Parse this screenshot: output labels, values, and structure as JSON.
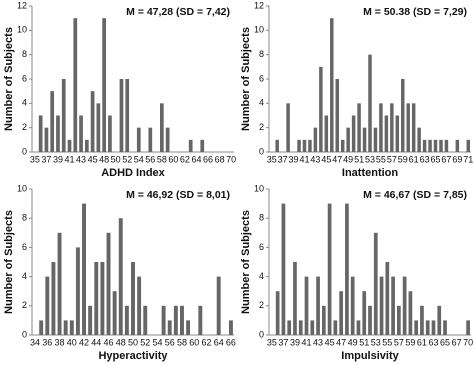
{
  "chart_data": [
    {
      "type": "bar",
      "annotation": "M = 47,28 (SD = 7,42)",
      "xlabel": "ADHD Index",
      "ylabel": "Number of Subjects",
      "color": "#666666",
      "grid": false,
      "categories": [
        "35",
        null,
        "37",
        null,
        "39",
        null,
        "41",
        null,
        "43",
        null,
        "45",
        null,
        "48",
        null,
        "50",
        null,
        "52",
        null,
        "54",
        null,
        "56",
        null,
        "58",
        null,
        "60",
        null,
        "62",
        null,
        "64",
        null,
        "66",
        null,
        "68",
        null,
        "70"
      ],
      "values": [
        0,
        3,
        2,
        5,
        3,
        6,
        1,
        11,
        3,
        1,
        5,
        4,
        11,
        3,
        0,
        6,
        6,
        0,
        2,
        0,
        2,
        0,
        4,
        2,
        0,
        0,
        0,
        1,
        0,
        1,
        0,
        0,
        0,
        0,
        0
      ],
      "ylim": [
        0,
        12
      ],
      "yticks": [
        0,
        2,
        4,
        6,
        8,
        10,
        12
      ]
    },
    {
      "type": "bar",
      "annotation": "M = 50.38 (SD = 7,29)",
      "xlabel": "Inattention",
      "ylabel": "Number of Subjects",
      "color": "#666666",
      "grid": false,
      "categories": [
        "35",
        null,
        "37",
        null,
        "39",
        null,
        "41",
        null,
        "43",
        null,
        "45",
        null,
        "47",
        null,
        "49",
        null,
        "51",
        null,
        "53",
        null,
        "55",
        null,
        "57",
        null,
        "59",
        null,
        "61",
        null,
        "63",
        null,
        "65",
        null,
        "67",
        null,
        "69",
        null,
        "71"
      ],
      "values": [
        0,
        1,
        0,
        4,
        0,
        1,
        1,
        1,
        2,
        7,
        3,
        11,
        6,
        1,
        2,
        3,
        4,
        2,
        8,
        2,
        4,
        3,
        4,
        3,
        6,
        4,
        4,
        2,
        1,
        1,
        1,
        1,
        1,
        0,
        1,
        0,
        1
      ],
      "ylim": [
        0,
        12
      ],
      "yticks": [
        0,
        2,
        4,
        6,
        8,
        10,
        12
      ]
    },
    {
      "type": "bar",
      "annotation": "M = 46,92 (SD = 8,01)",
      "xlabel": "Hyperactivity",
      "ylabel": "Number of Subjects",
      "color": "#666666",
      "grid": false,
      "categories": [
        "34",
        null,
        "36",
        null,
        "38",
        null,
        "40",
        null,
        "42",
        null,
        "44",
        null,
        "46",
        null,
        "48",
        null,
        "50",
        null,
        "52",
        null,
        "54",
        null,
        "56",
        null,
        "58",
        null,
        "60",
        null,
        "62",
        null,
        "64",
        null,
        "66"
      ],
      "values": [
        0,
        1,
        4,
        5,
        7,
        1,
        1,
        6,
        9,
        2,
        5,
        5,
        7,
        3,
        8,
        2,
        5,
        4,
        2,
        0,
        0,
        2,
        1,
        2,
        2,
        1,
        0,
        2,
        0,
        0,
        4,
        0,
        1
      ],
      "ylim": [
        0,
        10
      ],
      "yticks": [
        0,
        2,
        4,
        6,
        8,
        10
      ]
    },
    {
      "type": "bar",
      "annotation": "M = 46,67 (SD = 7,85)",
      "xlabel": "Impulsivity",
      "ylabel": "Number of Subjects",
      "color": "#666666",
      "grid": false,
      "categories": [
        "35",
        null,
        "37",
        null,
        "39",
        null,
        "41",
        null,
        "43",
        null,
        "45",
        null,
        "47",
        null,
        "49",
        null,
        "51",
        null,
        "53",
        null,
        "55",
        null,
        "57",
        null,
        "59",
        null,
        "61",
        null,
        "63",
        null,
        "65",
        null,
        "67",
        null,
        "70"
      ],
      "values": [
        0,
        3,
        9,
        1,
        5,
        1,
        4,
        1,
        4,
        2,
        9,
        1,
        3,
        9,
        4,
        1,
        3,
        2,
        7,
        4,
        5,
        4,
        2,
        4,
        3,
        1,
        2,
        1,
        1,
        2,
        1,
        0,
        0,
        0,
        1
      ],
      "ylim": [
        0,
        10
      ],
      "yticks": [
        0,
        2,
        4,
        6,
        8,
        10
      ]
    }
  ]
}
